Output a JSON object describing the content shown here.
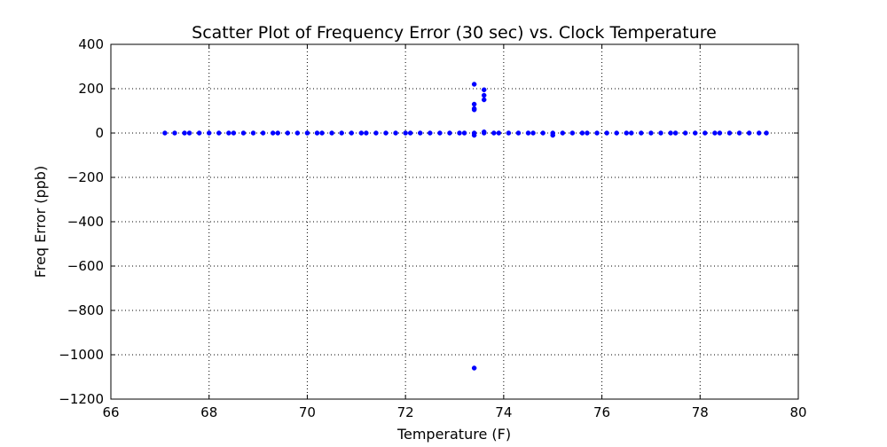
{
  "chart_data": {
    "type": "scatter",
    "title": "Scatter Plot of Frequency Error (30 sec) vs. Clock Temperature",
    "xlabel": "Temperature (F)",
    "ylabel": "Freq Error (ppb)",
    "xlim": [
      66,
      80
    ],
    "ylim": [
      -1200,
      400
    ],
    "xticks": [
      66,
      68,
      70,
      72,
      74,
      76,
      78,
      80
    ],
    "yticks": [
      -1200,
      -1000,
      -800,
      -600,
      -400,
      -200,
      0,
      200,
      400
    ],
    "xtick_labels": [
      "66",
      "68",
      "70",
      "72",
      "74",
      "76",
      "78",
      "80"
    ],
    "ytick_labels": [
      "−1200",
      "−1000",
      "−800",
      "−600",
      "−400",
      "−200",
      "0",
      "200",
      "400"
    ],
    "grid": true,
    "marker_color": "#0000ff",
    "series": [
      {
        "x": [
          67.1,
          67.3,
          67.5,
          67.6,
          67.8,
          68.0,
          68.2,
          68.4,
          68.5,
          68.7,
          68.9,
          69.1,
          69.3,
          69.4,
          69.6,
          69.8,
          70.0,
          70.2,
          70.3,
          70.5,
          70.7,
          70.9,
          71.1,
          71.2,
          71.4,
          71.6,
          71.8,
          72.0,
          72.1,
          72.3,
          72.5,
          72.7,
          72.9,
          73.1,
          73.2,
          73.4,
          73.4,
          73.4,
          73.4,
          73.4,
          73.4,
          73.4,
          73.6,
          73.6,
          73.6,
          73.6,
          73.6,
          73.8,
          73.9,
          74.1,
          74.3,
          74.5,
          74.6,
          74.8,
          75.0,
          75.0,
          75.2,
          75.4,
          75.6,
          75.7,
          75.9,
          76.1,
          76.3,
          76.5,
          76.6,
          76.8,
          77.0,
          77.2,
          77.4,
          77.5,
          77.7,
          77.9,
          78.1,
          78.3,
          78.4,
          78.6,
          78.8,
          79.0,
          79.2,
          79.35
        ],
        "y": [
          0,
          0,
          0,
          0,
          0,
          0,
          0,
          0,
          0,
          0,
          0,
          0,
          0,
          0,
          0,
          0,
          0,
          0,
          0,
          0,
          0,
          0,
          0,
          0,
          0,
          0,
          0,
          0,
          0,
          0,
          0,
          0,
          0,
          0,
          0,
          0,
          -10,
          105,
          110,
          130,
          220,
          -1060,
          0,
          150,
          170,
          195,
          5,
          0,
          0,
          0,
          0,
          0,
          0,
          0,
          0,
          -10,
          0,
          0,
          0,
          0,
          0,
          0,
          0,
          0,
          0,
          0,
          0,
          0,
          0,
          0,
          0,
          0,
          0,
          0,
          0,
          0,
          0,
          0,
          0,
          0
        ]
      }
    ]
  }
}
